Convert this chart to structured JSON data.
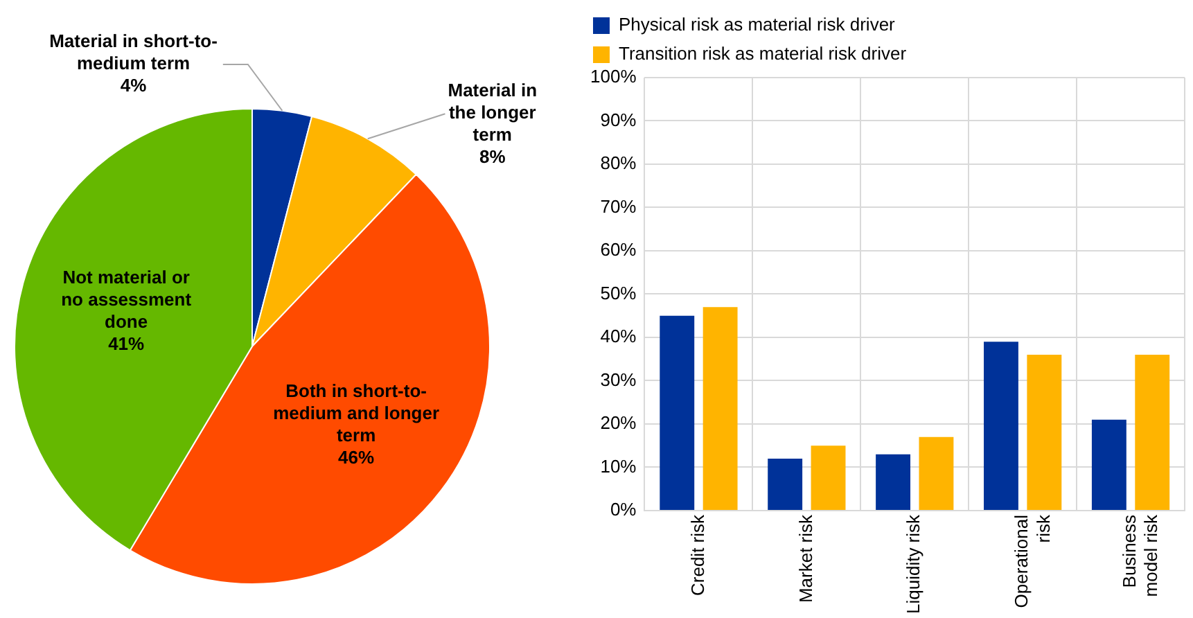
{
  "chart_data": [
    {
      "type": "pie",
      "categories": [
        "Material in short-to-medium term",
        "Material in the longer term",
        "Both in short-to-medium and longer term",
        "Not material or no assessment done"
      ],
      "values": [
        4,
        8,
        46,
        41
      ],
      "colors": [
        "#003299",
        "#ffb400",
        "#ff4b00",
        "#65b800"
      ],
      "value_labels": [
        "4%",
        "8%",
        "46%",
        "41%"
      ]
    },
    {
      "type": "bar",
      "categories": [
        "Credit risk",
        "Market risk",
        "Liquidity risk",
        "Operational risk",
        "Business model risk"
      ],
      "series": [
        {
          "name": "Physical risk as material risk driver",
          "color": "#003299",
          "values": [
            45,
            12,
            13,
            39,
            21
          ]
        },
        {
          "name": "Transition risk as material risk driver",
          "color": "#ffb400",
          "values": [
            47,
            15,
            17,
            36,
            36
          ]
        }
      ],
      "ylim": [
        0,
        100
      ],
      "yticks": [
        {
          "value": 0,
          "label": "0%"
        },
        {
          "value": 10,
          "label": "10%"
        },
        {
          "value": 20,
          "label": "20%"
        },
        {
          "value": 30,
          "label": "30%"
        },
        {
          "value": 40,
          "label": "40%"
        },
        {
          "value": 50,
          "label": "50%"
        },
        {
          "value": 60,
          "label": "60%"
        },
        {
          "value": 70,
          "label": "70%"
        },
        {
          "value": 80,
          "label": "80%"
        },
        {
          "value": 90,
          "label": "90%"
        },
        {
          "value": 100,
          "label": "100%"
        }
      ],
      "grid": true,
      "legend": "top left"
    }
  ]
}
